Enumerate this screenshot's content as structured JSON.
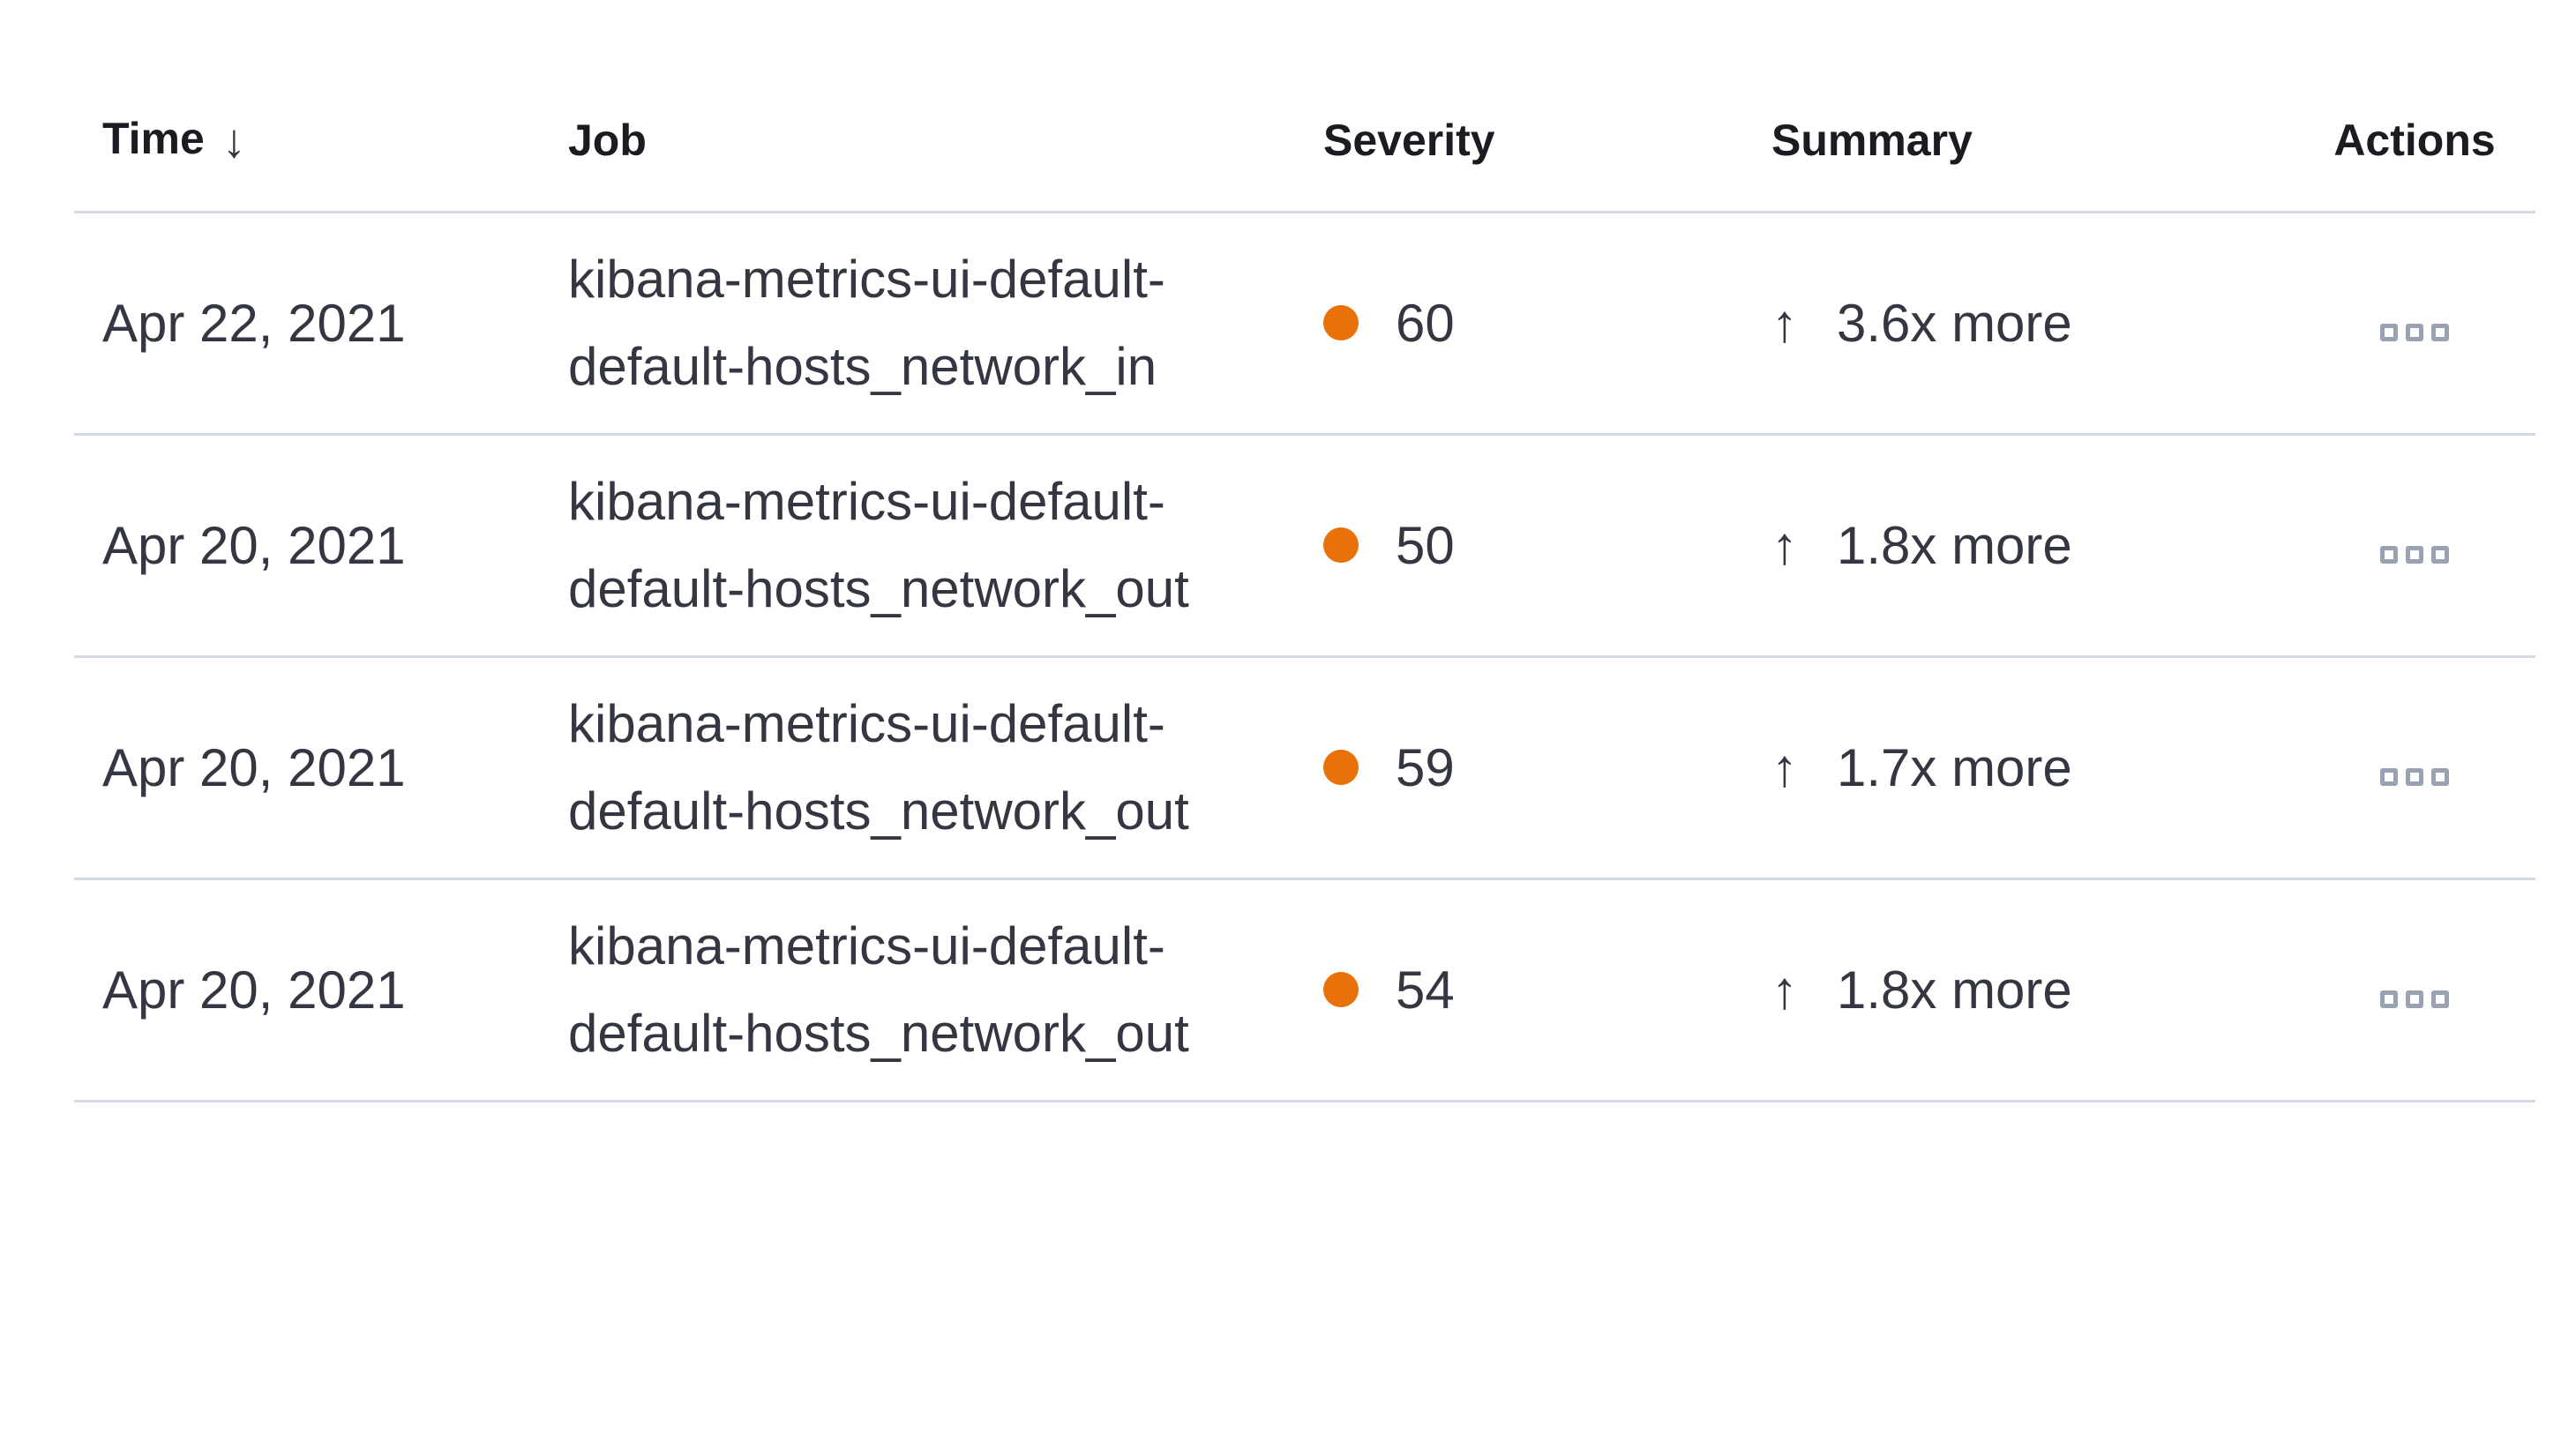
{
  "page": {
    "background": "#ffffff"
  },
  "table": {
    "columns": [
      {
        "label": "Time",
        "sorted": "descending"
      },
      {
        "label": "Job"
      },
      {
        "label": "Severity"
      },
      {
        "label": "Summary"
      },
      {
        "label": "Actions"
      }
    ],
    "icons": {
      "sort_glyph": "↓",
      "up_glyph": "↑",
      "sort_icon": "arrow-down-icon",
      "summary_icon": "arrow-up-icon",
      "actions_icon": "boxes-horizontal-icon"
    },
    "colors": {
      "severity_dot": "#E8710A",
      "divider": "#D3DAE6",
      "header_text": "#1A1C21",
      "body_text": "#343741",
      "actions_icon": "#98A2B3"
    },
    "rows": [
      {
        "time": "Apr 22, 2021",
        "job": "kibana-metrics-ui-default-default-hosts_network_in",
        "severity": "60",
        "summary": "3.6x more"
      },
      {
        "time": "Apr 20, 2021",
        "job": "kibana-metrics-ui-default-default-hosts_network_out",
        "severity": "50",
        "summary": "1.8x more"
      },
      {
        "time": "Apr 20, 2021",
        "job": "kibana-metrics-ui-default-default-hosts_network_out",
        "severity": "59",
        "summary": "1.7x more"
      },
      {
        "time": "Apr 20, 2021",
        "job": "kibana-metrics-ui-default-default-hosts_network_out",
        "severity": "54",
        "summary": "1.8x more"
      }
    ]
  }
}
